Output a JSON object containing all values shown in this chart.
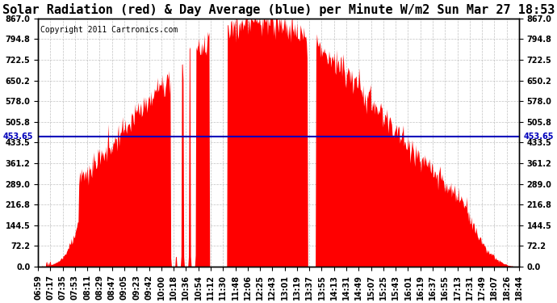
{
  "title": "Solar Radiation (red) & Day Average (blue) per Minute W/m2 Sun Mar 27 18:53",
  "copyright": "Copyright 2011 Cartronics.com",
  "day_average": 453.65,
  "y_ticks": [
    0.0,
    72.2,
    144.5,
    216.8,
    289.0,
    361.2,
    433.5,
    505.8,
    578.0,
    650.2,
    722.5,
    794.8,
    867.0
  ],
  "ymax": 867.0,
  "ymin": 0.0,
  "bar_color": "#FF0000",
  "avg_line_color": "#0000BB",
  "background_color": "#FFFFFF",
  "plot_bg_color": "#FFFFFF",
  "grid_color": "#BBBBBB",
  "x_labels": [
    "06:59",
    "07:17",
    "07:35",
    "07:53",
    "08:11",
    "08:29",
    "08:47",
    "09:05",
    "09:23",
    "09:42",
    "10:00",
    "10:18",
    "10:36",
    "10:54",
    "11:12",
    "11:30",
    "11:48",
    "12:06",
    "12:25",
    "12:43",
    "13:01",
    "13:19",
    "13:37",
    "13:55",
    "14:13",
    "14:31",
    "14:49",
    "15:07",
    "15:25",
    "15:43",
    "16:01",
    "16:19",
    "16:37",
    "16:55",
    "17:13",
    "17:31",
    "17:49",
    "18:07",
    "18:26",
    "18:44"
  ],
  "title_fontsize": 11,
  "copyright_fontsize": 7,
  "tick_fontsize": 7,
  "avg_label": "453.65",
  "figsize": [
    6.9,
    3.75
  ],
  "dpi": 100,
  "n_points": 707
}
